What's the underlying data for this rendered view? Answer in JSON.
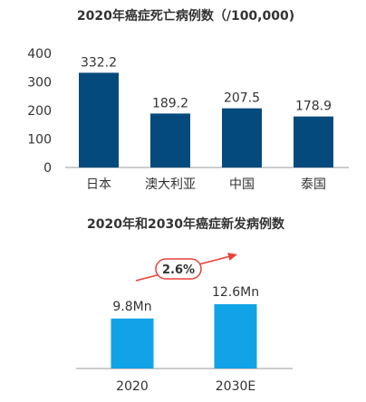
{
  "colors": {
    "bar_dark": "#054a7c",
    "bar_light": "#12a3e6",
    "axis": "#9a9a9a",
    "text": "#333333",
    "arrow": "#e8413c",
    "badge_fill": "#ffffff",
    "badge_border": "#e8413c"
  },
  "chart_data": [
    {
      "type": "bar",
      "title": "2020年癌症死亡病例数（/100,000)",
      "categories": [
        "日本",
        "澳大利亚",
        "中国",
        "泰国"
      ],
      "values": [
        332.2,
        189.2,
        207.5,
        178.9
      ],
      "value_labels": [
        "332.2",
        "189.2",
        "207.5",
        "178.9"
      ],
      "yticks": [
        "0",
        "100",
        "200",
        "300",
        "400"
      ],
      "ylim": [
        0,
        400
      ],
      "grid": false,
      "legend": "none"
    },
    {
      "type": "bar",
      "title": "2020年和2030年癌症新发病例数",
      "categories": [
        "2020",
        "2030E"
      ],
      "values": [
        9.8,
        12.6
      ],
      "value_labels": [
        "9.8Mn",
        "12.6Mn"
      ],
      "annotation": "2.6%",
      "grid": false,
      "legend": "none"
    }
  ]
}
